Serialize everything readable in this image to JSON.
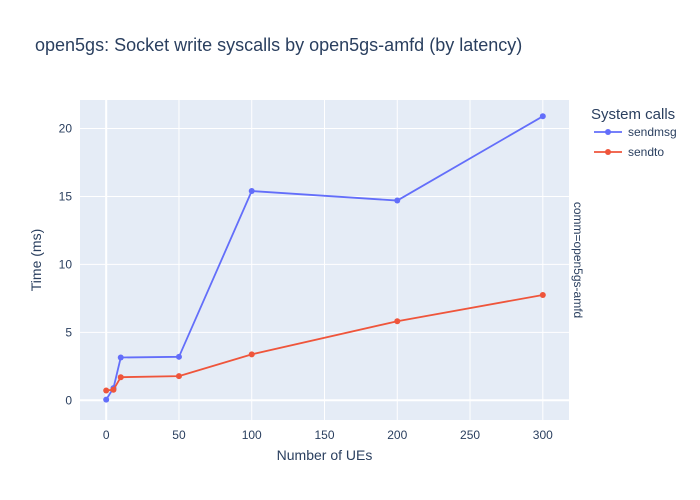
{
  "chart_data": {
    "type": "line",
    "title": "open5gs: Socket write syscalls by open5gs-amfd (by latency)",
    "xlabel": "Number of UEs",
    "ylabel": "Time (ms)",
    "facet_label": "comm=open5gs-amfd",
    "legend_title": "System calls",
    "legend_position": "top-right",
    "grid": true,
    "xlim": [
      -18,
      318
    ],
    "ylim": [
      -1.45,
      22.1
    ],
    "x_ticks": [
      0,
      50,
      100,
      150,
      200,
      250,
      300
    ],
    "y_ticks": [
      0,
      5,
      10,
      15,
      20
    ],
    "series": [
      {
        "name": "sendmsg",
        "color": "#636efa",
        "x": [
          0,
          5,
          10,
          50,
          100,
          200,
          300
        ],
        "y": [
          0.05,
          0.9,
          3.15,
          3.2,
          15.4,
          14.7,
          20.9
        ]
      },
      {
        "name": "sendto",
        "color": "#ef553b",
        "x": [
          0,
          5,
          10,
          50,
          100,
          200,
          300
        ],
        "y": [
          0.72,
          0.78,
          1.7,
          1.78,
          3.38,
          5.82,
          7.75
        ]
      }
    ]
  }
}
